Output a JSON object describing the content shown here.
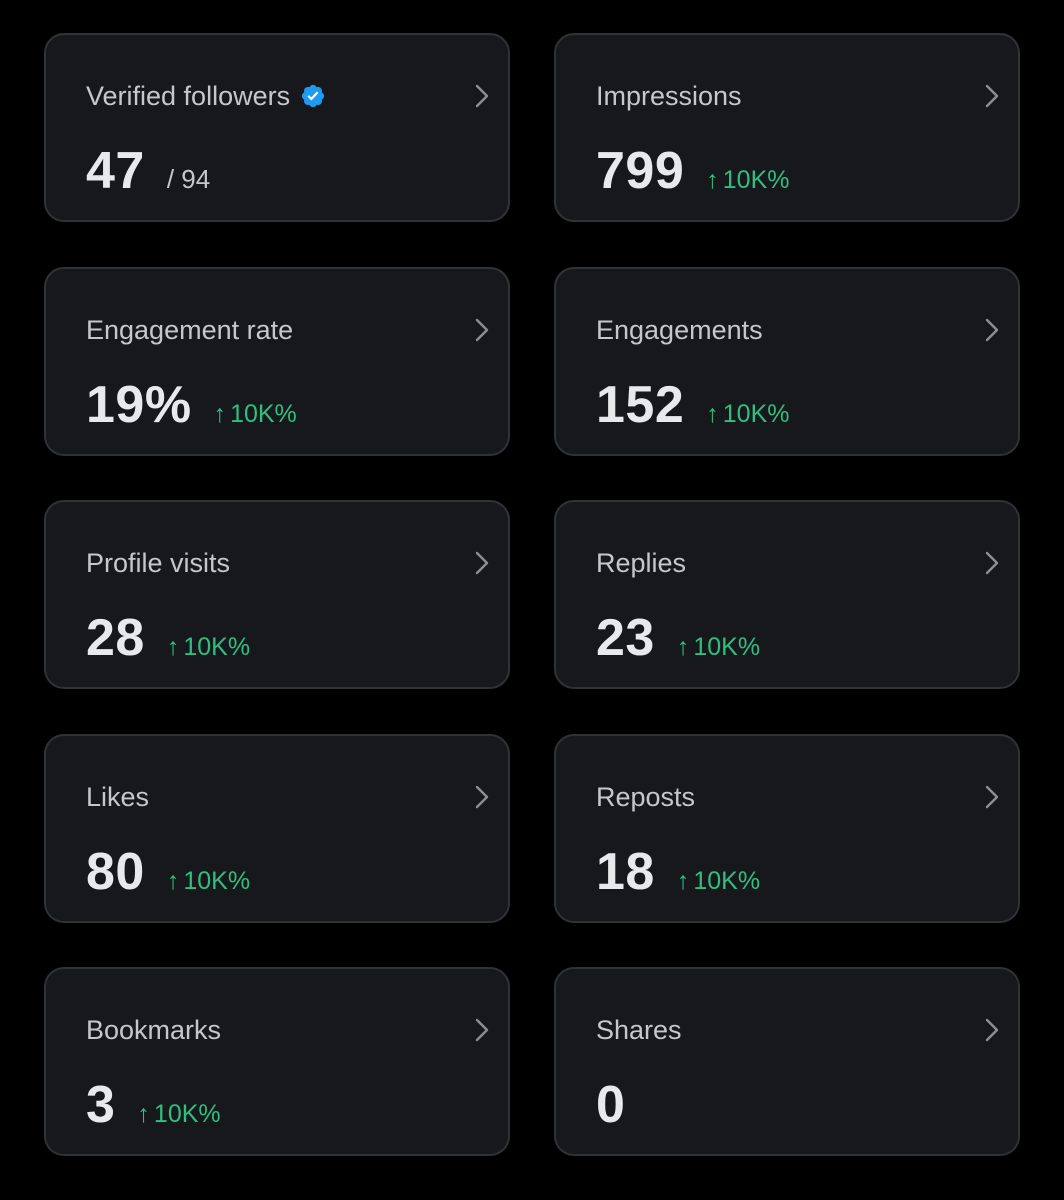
{
  "colors": {
    "background": "#000000",
    "card_background": "#16181c",
    "card_border": "#2f3336",
    "title_text": "#c4c7cb",
    "value_text": "#e7e9ea",
    "change_positive": "#2fbf80",
    "verified_badge": "#1d9bf0",
    "chevron": "#8b8f94"
  },
  "cards": [
    {
      "title": "Verified followers",
      "value": "47",
      "total": "/ 94",
      "verified_icon": "verified-badge-icon",
      "chevron_icon": "chevron-right-icon"
    },
    {
      "title": "Impressions",
      "value": "799",
      "change": "10K%",
      "change_icon": "arrow-up-icon",
      "chevron_icon": "chevron-right-icon"
    },
    {
      "title": "Engagement rate",
      "value": "19%",
      "change": "10K%",
      "change_icon": "arrow-up-icon",
      "chevron_icon": "chevron-right-icon"
    },
    {
      "title": "Engagements",
      "value": "152",
      "change": "10K%",
      "change_icon": "arrow-up-icon",
      "chevron_icon": "chevron-right-icon"
    },
    {
      "title": "Profile visits",
      "value": "28",
      "change": "10K%",
      "change_icon": "arrow-up-icon",
      "chevron_icon": "chevron-right-icon"
    },
    {
      "title": "Replies",
      "value": "23",
      "change": "10K%",
      "change_icon": "arrow-up-icon",
      "chevron_icon": "chevron-right-icon"
    },
    {
      "title": "Likes",
      "value": "80",
      "change": "10K%",
      "change_icon": "arrow-up-icon",
      "chevron_icon": "chevron-right-icon"
    },
    {
      "title": "Reposts",
      "value": "18",
      "change": "10K%",
      "change_icon": "arrow-up-icon",
      "chevron_icon": "chevron-right-icon"
    },
    {
      "title": "Bookmarks",
      "value": "3",
      "change": "10K%",
      "change_icon": "arrow-up-icon",
      "chevron_icon": "chevron-right-icon"
    },
    {
      "title": "Shares",
      "value": "0",
      "chevron_icon": "chevron-right-icon"
    }
  ]
}
